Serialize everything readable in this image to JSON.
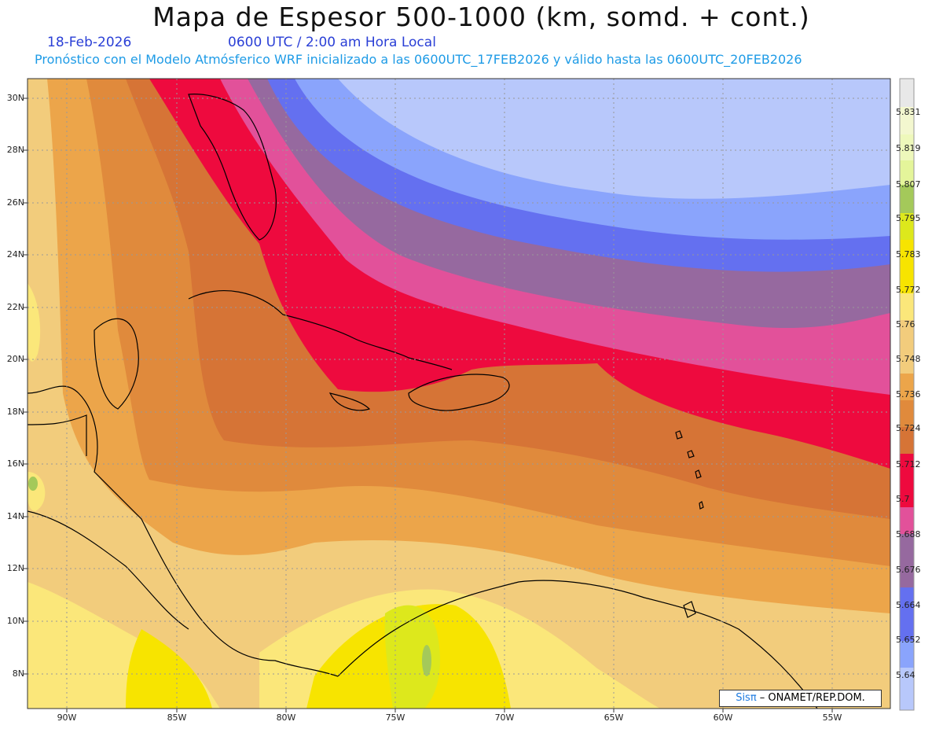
{
  "header": {
    "title": "Mapa de Espesor 500-1000 (km, somd. + cont.)",
    "date": "18-Feb-2026",
    "time": "0600 UTC / 2:00 am Hora Local",
    "forecast": "Pronóstico con el Modelo Atmósferico WRF inicializado a las 0600UTC_17FEB2026 y válido hasta las  0600UTC_20FEB2026"
  },
  "axes": {
    "lat_labels": [
      "30N",
      "28N",
      "26N",
      "24N",
      "22N",
      "20N",
      "18N",
      "16N",
      "14N",
      "12N",
      "10N",
      "8N"
    ],
    "lon_labels": [
      "90W",
      "85W",
      "80W",
      "75W",
      "70W",
      "65W",
      "60W",
      "55W"
    ]
  },
  "legend": {
    "levels": [
      "5.831",
      "5.819",
      "5.807",
      "5.795",
      "5.783",
      "5.772",
      "5.76",
      "5.748",
      "5.736",
      "5.724",
      "5.712",
      "5.7",
      "5.688",
      "5.676",
      "5.664",
      "5.652",
      "5.64"
    ],
    "colors_top_to_bottom": [
      "#e8e8e8",
      "#f3f7cf",
      "#e4f59a",
      "#a4c95a",
      "#dde81c",
      "#f7e400",
      "#fbe77a",
      "#f2cc7c",
      "#eca54a",
      "#e08a3c",
      "#d67436",
      "#ee0a3e",
      "#e2519a",
      "#96699f",
      "#6470f0",
      "#8aa4fc",
      "#b8c8fb"
    ]
  },
  "credit": {
    "sis": "Sisπ",
    "rest": " – ONAMET/REP.DOM."
  }
}
